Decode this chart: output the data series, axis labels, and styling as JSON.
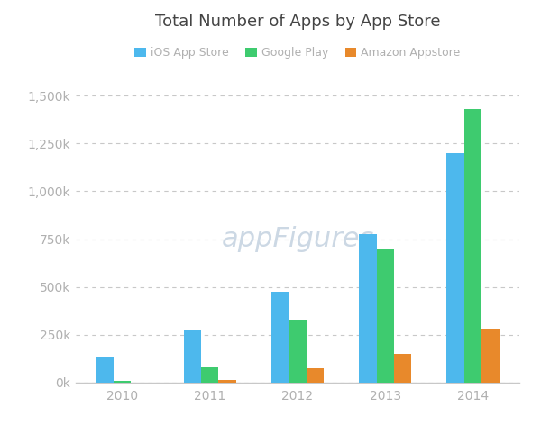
{
  "title": "Total Number of Apps by App Store",
  "years": [
    2010,
    2011,
    2012,
    2013,
    2014
  ],
  "ios": [
    130000,
    270000,
    475000,
    775000,
    1200000
  ],
  "google": [
    8000,
    80000,
    330000,
    700000,
    1430000
  ],
  "amazon": [
    0,
    15000,
    75000,
    150000,
    280000
  ],
  "colors": {
    "ios": "#4db8ed",
    "google": "#3ecb6f",
    "amazon": "#e8892b"
  },
  "legend_labels": [
    "iOS App Store",
    "Google Play",
    "Amazon Appstore"
  ],
  "background_color": "#ffffff",
  "grid_color": "#c8c8c8",
  "axis_label_color": "#b0b0b0",
  "title_color": "#444444",
  "watermark": "appFigures",
  "watermark_color": "#ccd8e4",
  "ylim": [
    0,
    1600000
  ],
  "yticks": [
    0,
    250000,
    500000,
    750000,
    1000000,
    1250000,
    1500000
  ]
}
